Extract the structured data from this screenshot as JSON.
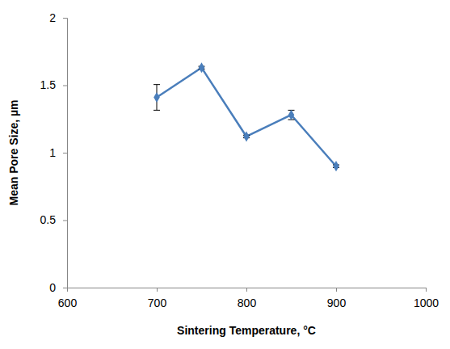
{
  "chart_data": {
    "type": "line",
    "x_label": "Sintering Temperature, °C",
    "y_label": "Mean Pore Size, µm",
    "x": [
      700,
      750,
      800,
      850,
      900
    ],
    "series": [
      {
        "color": "#4a7ebb",
        "marker": "diamond",
        "line_style": "solid",
        "values": [
          1.41,
          1.63,
          1.12,
          1.28,
          0.9
        ],
        "errors": [
          0.095,
          0.01,
          0.01,
          0.035,
          0.01
        ]
      }
    ],
    "xlim": [
      600,
      1000
    ],
    "xticks": [
      600,
      700,
      800,
      900,
      1000
    ],
    "ylim": [
      0,
      2
    ],
    "yticks": [
      0,
      0.5,
      1,
      1.5,
      2
    ],
    "grid": false
  }
}
